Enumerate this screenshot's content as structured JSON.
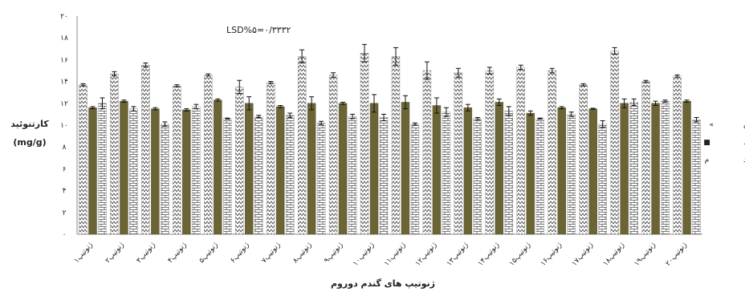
{
  "chart_data": {
    "type": "bar",
    "title": "",
    "xlabel": "ژنوتیپ های گندم دوروم",
    "ylabel_lines": [
      "کارتنوئید",
      "(mg/g)"
    ],
    "annotation": "LSD%۵=۰/۳۳۳۲",
    "ylim": [
      0,
      20
    ],
    "ytick_labels": [
      "۰",
      "۲",
      "۴",
      "۶",
      "۸",
      "۱۰",
      "۱۲",
      "۱۴",
      "۱۶",
      "۱۸",
      "۲۰"
    ],
    "grid": false,
    "legend_position": "right",
    "categories": [
      "ژنوتیپ۱",
      "ژنوتیپ۲",
      "ژنوتیپ۳",
      "ژنوتیپ۴",
      "ژنوتیپ۵",
      "ژنوتیپ۶",
      "ژنوتیپ۷",
      "ژنوتیپ۸",
      "ژنوتیپ۹",
      "ژنوتیپ۱۰",
      "ژنوتیپ۱۱",
      "ژنوتیپ۱۲",
      "ژنوتیپ۱۳",
      "ژنوتیپ۱۴",
      "ژنوتیپ۱۵",
      "ژنوتیپ۱۶",
      "ژنوتیپ۱۷",
      "ژنوتیپ۱۸",
      "ژنوتیپ۱۹",
      "ژنوتیپ۲۰"
    ],
    "series": [
      {
        "name": "ون تنش",
        "legend_marker": "«",
        "color": "#ffffff",
        "pattern": "zigzag",
        "values": [
          13.7,
          14.7,
          15.5,
          13.6,
          14.6,
          13.5,
          13.9,
          16.3,
          14.6,
          16.6,
          16.3,
          15.0,
          14.8,
          15.0,
          15.3,
          15.0,
          13.7,
          16.8,
          14.0,
          14.5
        ],
        "errors": [
          0.1,
          0.2,
          0.2,
          0.1,
          0.1,
          0.6,
          0.1,
          0.6,
          0.2,
          0.8,
          0.8,
          0.8,
          0.4,
          0.3,
          0.2,
          0.2,
          0.1,
          0.3,
          0.1,
          0.1
        ]
      },
      {
        "name": "ن متوسط",
        "legend_marker": "■",
        "color": "#6b6535",
        "pattern": "solid",
        "values": [
          11.6,
          12.2,
          11.5,
          11.4,
          12.3,
          12.0,
          11.7,
          12.0,
          12.0,
          12.0,
          12.1,
          11.8,
          11.6,
          12.1,
          11.1,
          11.6,
          11.5,
          12.0,
          12.0,
          12.2
        ],
        "errors": [
          0.1,
          0.1,
          0.1,
          0.1,
          0.1,
          0.6,
          0.1,
          0.6,
          0.1,
          0.8,
          0.6,
          0.7,
          0.3,
          0.3,
          0.2,
          0.1,
          0.05,
          0.4,
          0.2,
          0.1
        ]
      },
      {
        "name": "نش شدید",
        "legend_marker": "م",
        "color": "#ffffff",
        "pattern": "brick",
        "values": [
          12.0,
          11.5,
          10.1,
          11.7,
          10.6,
          10.8,
          10.9,
          10.2,
          10.8,
          10.7,
          10.1,
          11.2,
          10.6,
          11.3,
          10.6,
          11.0,
          10.1,
          12.1,
          12.2,
          10.5
        ],
        "errors": [
          0.5,
          0.2,
          0.2,
          0.2,
          0.05,
          0.1,
          0.2,
          0.15,
          0.2,
          0.3,
          0.1,
          0.4,
          0.1,
          0.4,
          0.05,
          0.2,
          0.3,
          0.3,
          0.1,
          0.2
        ]
      }
    ]
  }
}
